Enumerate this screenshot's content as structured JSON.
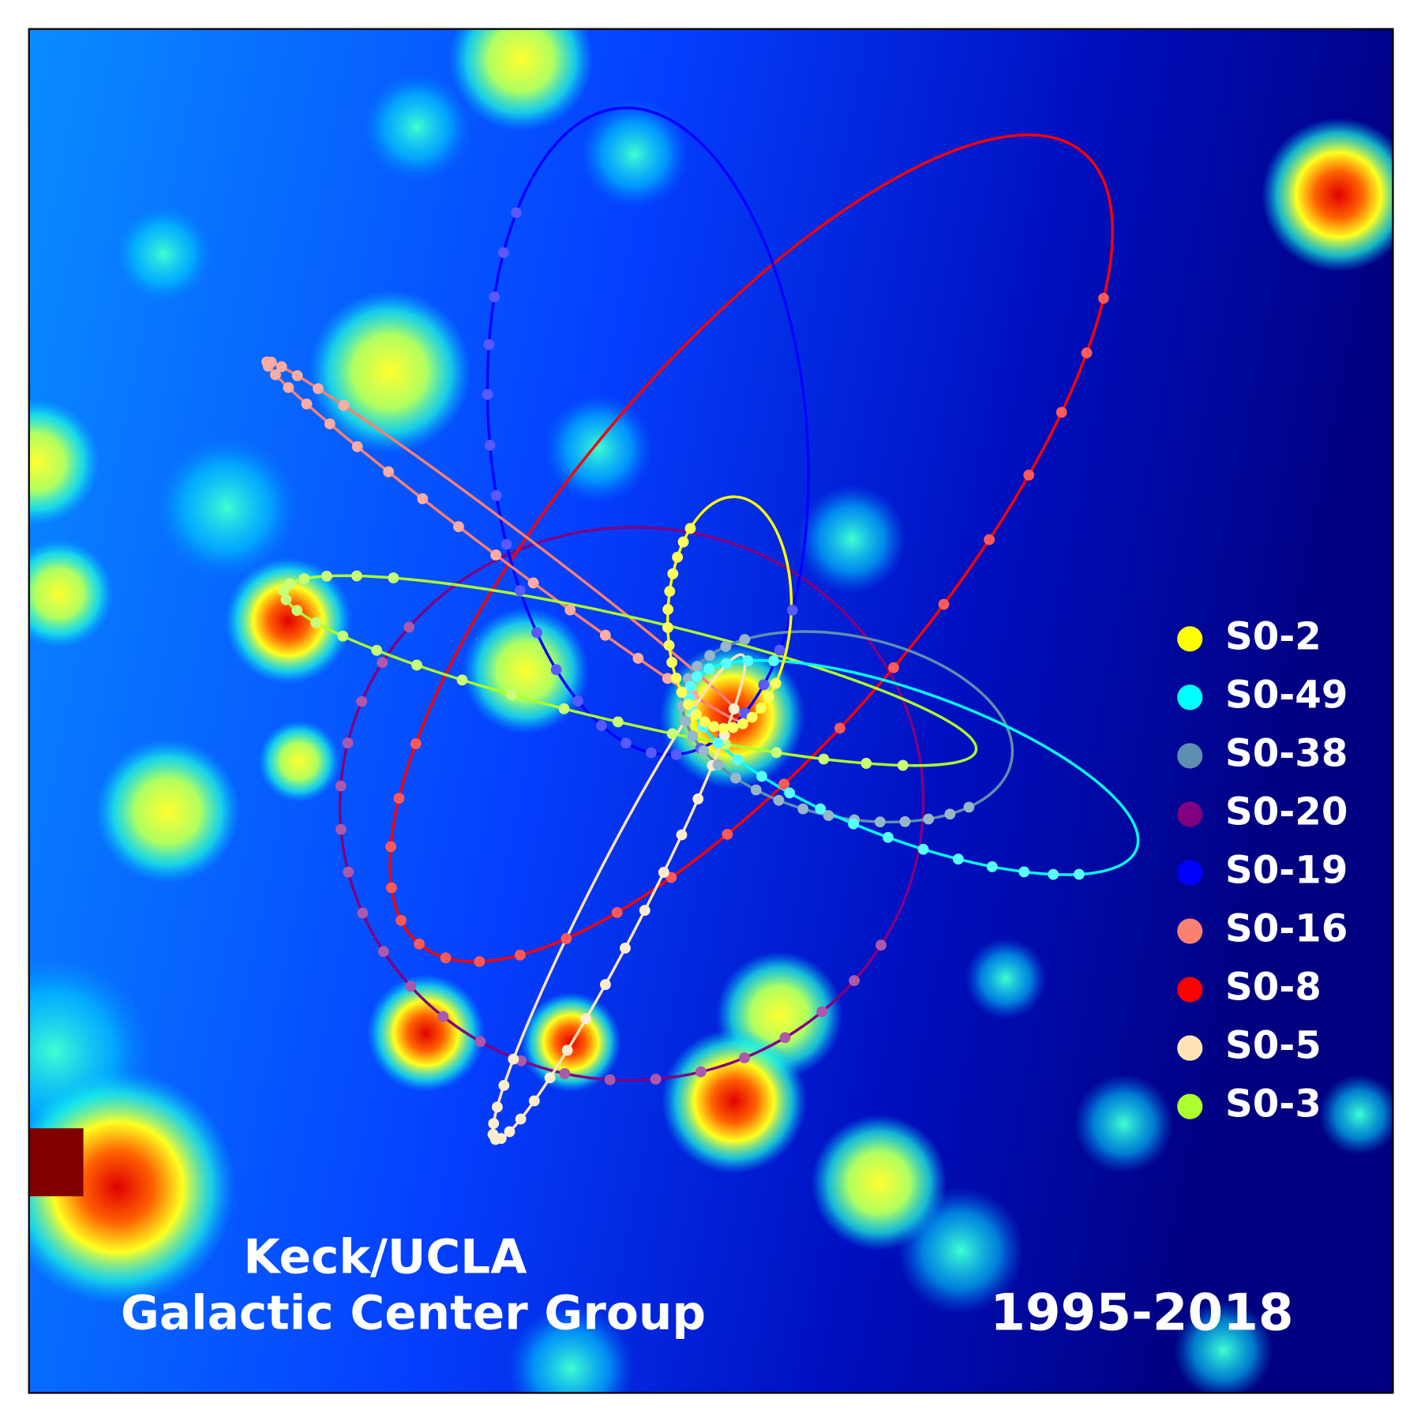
{
  "legend": {
    "entries": [
      {
        "name": "S0-2",
        "color": "#ffff00"
      },
      {
        "name": "S0-49",
        "color": "#00ffff"
      },
      {
        "name": "S0-38",
        "color": "#5f8fb0"
      },
      {
        "name": "S0-20",
        "color": "#800080"
      },
      {
        "name": "S0-19",
        "color": "#0000ff"
      },
      {
        "name": "S0-16",
        "color": "#fa8072"
      },
      {
        "name": "S0-8",
        "color": "#ff0000"
      },
      {
        "name": "S0-5",
        "color": "#ffe4b5"
      },
      {
        "name": "S0-3",
        "color": "#adff2f"
      }
    ]
  },
  "credit": {
    "line1": "Keck/UCLA",
    "line2": "Galactic Center Group"
  },
  "years": "1995-2018"
}
